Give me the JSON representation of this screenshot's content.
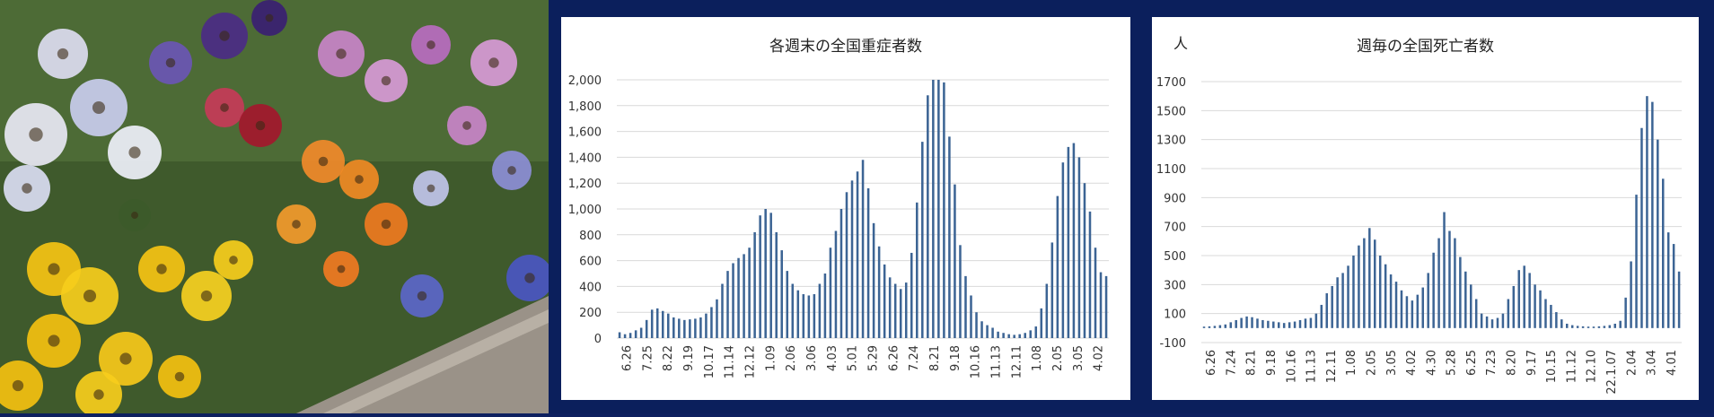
{
  "chart_data": [
    {
      "type": "bar",
      "title": "各週末の全国重症者数",
      "ylim": [
        0,
        2000
      ],
      "yticks": [
        "0",
        "200",
        "400",
        "600",
        "800",
        "1,000",
        "1,200",
        "1,400",
        "1,600",
        "1,800",
        "2,000"
      ],
      "xticks": [
        "6.26",
        "7.25",
        "8.22",
        "9.19",
        "10.17",
        "11.14",
        "12.12",
        "1.09",
        "2.06",
        "3.06",
        "4.03",
        "5.01",
        "5.29",
        "6.26",
        "7.24",
        "8.21",
        "9.18",
        "10.16",
        "11.13",
        "12.11",
        "1.08",
        "2.05",
        "3.05",
        "4.02"
      ],
      "values": [
        45,
        30,
        40,
        60,
        80,
        140,
        220,
        230,
        210,
        190,
        160,
        150,
        140,
        145,
        150,
        160,
        190,
        240,
        300,
        420,
        520,
        580,
        620,
        650,
        700,
        820,
        950,
        1000,
        970,
        820,
        680,
        520,
        420,
        370,
        340,
        330,
        340,
        420,
        500,
        700,
        830,
        1000,
        1130,
        1220,
        1290,
        1380,
        1160,
        890,
        710,
        570,
        470,
        420,
        380,
        430,
        660,
        1050,
        1520,
        1880,
        2000,
        2000,
        1980,
        1560,
        1190,
        720,
        480,
        330,
        200,
        130,
        100,
        80,
        50,
        40,
        30,
        25,
        30,
        40,
        60,
        90,
        230,
        420,
        740,
        1100,
        1360,
        1480,
        1510,
        1400,
        1200,
        980,
        700,
        510,
        480
      ]
    },
    {
      "type": "bar",
      "title": "週毎の全国死亡者数",
      "unit": "人",
      "ylim": [
        -100,
        1700
      ],
      "yticks": [
        "-100",
        "100",
        "300",
        "500",
        "700",
        "900",
        "1100",
        "1300",
        "1500",
        "1700"
      ],
      "xticks": [
        "6.26",
        "7.24",
        "8.21",
        "9.18",
        "10.16",
        "11.13",
        "12.11",
        "1.08",
        "2.05",
        "3.05",
        "4.02",
        "4.30",
        "5.28",
        "6.25",
        "7.23",
        "8.20",
        "9.17",
        "10.15",
        "11.12",
        "12.10",
        "22.1.07",
        "2.04",
        "3.04",
        "4.01"
      ],
      "values": [
        10,
        12,
        15,
        20,
        25,
        40,
        55,
        70,
        80,
        75,
        65,
        55,
        50,
        45,
        40,
        35,
        40,
        45,
        55,
        65,
        70,
        100,
        160,
        240,
        290,
        350,
        380,
        430,
        500,
        570,
        620,
        690,
        610,
        500,
        440,
        370,
        320,
        260,
        220,
        190,
        230,
        280,
        380,
        520,
        620,
        800,
        670,
        620,
        490,
        390,
        300,
        200,
        100,
        80,
        60,
        70,
        100,
        200,
        290,
        400,
        430,
        380,
        300,
        260,
        200,
        160,
        110,
        60,
        30,
        20,
        15,
        12,
        10,
        10,
        12,
        15,
        20,
        30,
        50,
        210,
        460,
        920,
        1380,
        1600,
        1560,
        1300,
        1030,
        660,
        580,
        390
      ]
    }
  ]
}
